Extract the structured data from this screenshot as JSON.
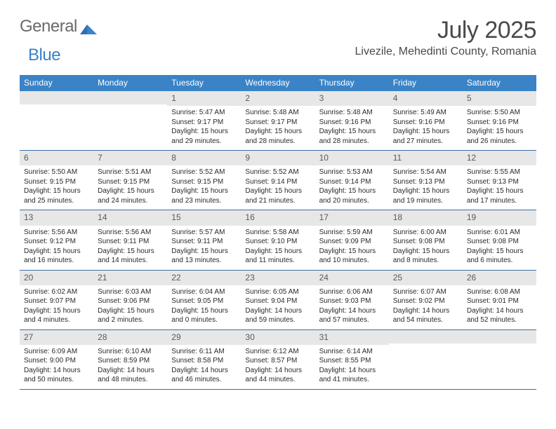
{
  "logo": {
    "word1": "General",
    "word2": "Blue"
  },
  "title": "July 2025",
  "subtitle": "Livezile, Mehedinti County, Romania",
  "colors": {
    "header_bg": "#3a83c6",
    "header_text": "#ffffff",
    "daynum_bg": "#e7e7e7",
    "daynum_text": "#5a5a5a",
    "body_text": "#2a2a2a",
    "rule": "#3a6ea8",
    "title_text": "#4a4a4a"
  },
  "typography": {
    "title_fontsize": 34,
    "subtitle_fontsize": 16,
    "dow_fontsize": 12,
    "daynum_fontsize": 12,
    "body_fontsize": 10
  },
  "days_of_week": [
    "Sunday",
    "Monday",
    "Tuesday",
    "Wednesday",
    "Thursday",
    "Friday",
    "Saturday"
  ],
  "labels": {
    "sunrise": "Sunrise:",
    "sunset": "Sunset:",
    "daylight": "Daylight:"
  },
  "weeks": [
    [
      null,
      null,
      {
        "n": "1",
        "sunrise": "5:47 AM",
        "sunset": "9:17 PM",
        "daylight": "15 hours and 29 minutes."
      },
      {
        "n": "2",
        "sunrise": "5:48 AM",
        "sunset": "9:17 PM",
        "daylight": "15 hours and 28 minutes."
      },
      {
        "n": "3",
        "sunrise": "5:48 AM",
        "sunset": "9:16 PM",
        "daylight": "15 hours and 28 minutes."
      },
      {
        "n": "4",
        "sunrise": "5:49 AM",
        "sunset": "9:16 PM",
        "daylight": "15 hours and 27 minutes."
      },
      {
        "n": "5",
        "sunrise": "5:50 AM",
        "sunset": "9:16 PM",
        "daylight": "15 hours and 26 minutes."
      }
    ],
    [
      {
        "n": "6",
        "sunrise": "5:50 AM",
        "sunset": "9:15 PM",
        "daylight": "15 hours and 25 minutes."
      },
      {
        "n": "7",
        "sunrise": "5:51 AM",
        "sunset": "9:15 PM",
        "daylight": "15 hours and 24 minutes."
      },
      {
        "n": "8",
        "sunrise": "5:52 AM",
        "sunset": "9:15 PM",
        "daylight": "15 hours and 23 minutes."
      },
      {
        "n": "9",
        "sunrise": "5:52 AM",
        "sunset": "9:14 PM",
        "daylight": "15 hours and 21 minutes."
      },
      {
        "n": "10",
        "sunrise": "5:53 AM",
        "sunset": "9:14 PM",
        "daylight": "15 hours and 20 minutes."
      },
      {
        "n": "11",
        "sunrise": "5:54 AM",
        "sunset": "9:13 PM",
        "daylight": "15 hours and 19 minutes."
      },
      {
        "n": "12",
        "sunrise": "5:55 AM",
        "sunset": "9:13 PM",
        "daylight": "15 hours and 17 minutes."
      }
    ],
    [
      {
        "n": "13",
        "sunrise": "5:56 AM",
        "sunset": "9:12 PM",
        "daylight": "15 hours and 16 minutes."
      },
      {
        "n": "14",
        "sunrise": "5:56 AM",
        "sunset": "9:11 PM",
        "daylight": "15 hours and 14 minutes."
      },
      {
        "n": "15",
        "sunrise": "5:57 AM",
        "sunset": "9:11 PM",
        "daylight": "15 hours and 13 minutes."
      },
      {
        "n": "16",
        "sunrise": "5:58 AM",
        "sunset": "9:10 PM",
        "daylight": "15 hours and 11 minutes."
      },
      {
        "n": "17",
        "sunrise": "5:59 AM",
        "sunset": "9:09 PM",
        "daylight": "15 hours and 10 minutes."
      },
      {
        "n": "18",
        "sunrise": "6:00 AM",
        "sunset": "9:08 PM",
        "daylight": "15 hours and 8 minutes."
      },
      {
        "n": "19",
        "sunrise": "6:01 AM",
        "sunset": "9:08 PM",
        "daylight": "15 hours and 6 minutes."
      }
    ],
    [
      {
        "n": "20",
        "sunrise": "6:02 AM",
        "sunset": "9:07 PM",
        "daylight": "15 hours and 4 minutes."
      },
      {
        "n": "21",
        "sunrise": "6:03 AM",
        "sunset": "9:06 PM",
        "daylight": "15 hours and 2 minutes."
      },
      {
        "n": "22",
        "sunrise": "6:04 AM",
        "sunset": "9:05 PM",
        "daylight": "15 hours and 0 minutes."
      },
      {
        "n": "23",
        "sunrise": "6:05 AM",
        "sunset": "9:04 PM",
        "daylight": "14 hours and 59 minutes."
      },
      {
        "n": "24",
        "sunrise": "6:06 AM",
        "sunset": "9:03 PM",
        "daylight": "14 hours and 57 minutes."
      },
      {
        "n": "25",
        "sunrise": "6:07 AM",
        "sunset": "9:02 PM",
        "daylight": "14 hours and 54 minutes."
      },
      {
        "n": "26",
        "sunrise": "6:08 AM",
        "sunset": "9:01 PM",
        "daylight": "14 hours and 52 minutes."
      }
    ],
    [
      {
        "n": "27",
        "sunrise": "6:09 AM",
        "sunset": "9:00 PM",
        "daylight": "14 hours and 50 minutes."
      },
      {
        "n": "28",
        "sunrise": "6:10 AM",
        "sunset": "8:59 PM",
        "daylight": "14 hours and 48 minutes."
      },
      {
        "n": "29",
        "sunrise": "6:11 AM",
        "sunset": "8:58 PM",
        "daylight": "14 hours and 46 minutes."
      },
      {
        "n": "30",
        "sunrise": "6:12 AM",
        "sunset": "8:57 PM",
        "daylight": "14 hours and 44 minutes."
      },
      {
        "n": "31",
        "sunrise": "6:14 AM",
        "sunset": "8:55 PM",
        "daylight": "14 hours and 41 minutes."
      },
      null,
      null
    ]
  ]
}
